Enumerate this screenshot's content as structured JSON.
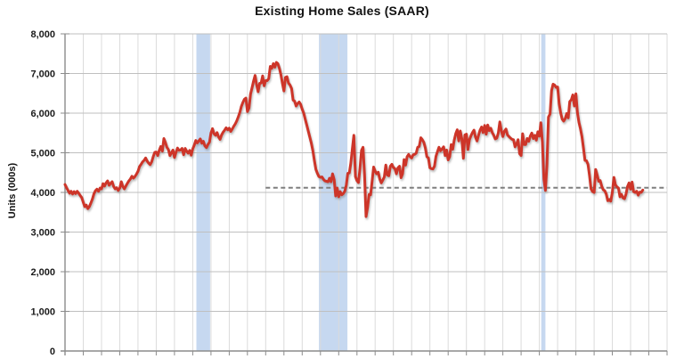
{
  "chart_data": {
    "type": "line",
    "title": "Existing Home Sales (SAAR)",
    "y_axis": {
      "label": "Units (000s)",
      "min": 0,
      "max": 8000,
      "tick_interval": 1000,
      "tick_labels": [
        "0",
        "1,000",
        "2,000",
        "3,000",
        "4,000",
        "5,000",
        "6,000",
        "7,000",
        "8,000"
      ]
    },
    "x_axis": {
      "min": 1994,
      "max": 2027,
      "gridline_interval_years": 1,
      "tick_labels_visible": false
    },
    "grid": true,
    "legend": "none",
    "series": [
      {
        "name": "Existing Home Sales (monthly, SAAR)",
        "color": "#CD3529",
        "unit": "thousands of units",
        "start_year": 1994,
        "points_per_year": 12,
        "values": [
          4200,
          4120,
          4050,
          3980,
          4030,
          3960,
          4020,
          3970,
          4030,
          3980,
          3920,
          3870,
          3750,
          3640,
          3680,
          3590,
          3640,
          3730,
          3830,
          3960,
          4040,
          4080,
          4030,
          4110,
          4090,
          4220,
          4160,
          4240,
          4290,
          4180,
          4230,
          4270,
          4150,
          4090,
          4120,
          4050,
          4110,
          4270,
          4150,
          4090,
          4160,
          4230,
          4290,
          4340,
          4410,
          4360,
          4400,
          4460,
          4530,
          4650,
          4710,
          4770,
          4810,
          4870,
          4790,
          4740,
          4700,
          4770,
          4900,
          5010,
          5020,
          4930,
          5060,
          5160,
          5040,
          5360,
          5260,
          5140,
          5080,
          4930,
          5000,
          5070,
          4880,
          5010,
          5120,
          5060,
          5070,
          5110,
          4950,
          5110,
          5040,
          4990,
          5060,
          4940,
          5100,
          5190,
          5310,
          5250,
          5300,
          5350,
          5240,
          5290,
          5170,
          5130,
          5210,
          5270,
          5500,
          5610,
          5480,
          5440,
          5510,
          5400,
          5340,
          5450,
          5520,
          5570,
          5630,
          5580,
          5620,
          5540,
          5600,
          5670,
          5730,
          5810,
          5910,
          6020,
          6170,
          6270,
          6350,
          6380,
          6040,
          6130,
          6480,
          6640,
          6810,
          6950,
          6720,
          6540,
          6750,
          6760,
          6940,
          6690,
          6820,
          6820,
          6870,
          7180,
          7130,
          7250,
          7160,
          7280,
          7250,
          7130,
          6970,
          6750,
          6560,
          6900,
          6920,
          6760,
          6710,
          6620,
          6330,
          6300,
          6180,
          6240,
          6280,
          6220,
          6100,
          6000,
          5850,
          5700,
          5550,
          5400,
          5250,
          5050,
          4800,
          4580,
          4480,
          4400,
          4380,
          4390,
          4330,
          4290,
          4280,
          4270,
          4360,
          4270,
          4470,
          4320,
          3910,
          4110,
          3890,
          4020,
          3940,
          3970,
          4030,
          4180,
          4480,
          4490,
          4740,
          5100,
          5440,
          4400,
          4300,
          4250,
          4610,
          5060,
          5140,
          4450,
          3390,
          3620,
          3950,
          3940,
          4280,
          4640,
          4540,
          4470,
          4510,
          4340,
          4240,
          4310,
          4390,
          4690,
          4440,
          4420,
          4660,
          4710,
          4630,
          4600,
          4470,
          4620,
          4660,
          4370,
          4470,
          4830,
          4690,
          4900,
          4960,
          4900,
          4870,
          4950,
          4960,
          4990,
          5140,
          5160,
          5380,
          5330,
          5260,
          5120,
          4900,
          4870,
          4620,
          4600,
          4590,
          4660,
          4910,
          5030,
          5140,
          5050,
          5100,
          5150,
          4930,
          5070,
          4820,
          4900,
          5210,
          5090,
          5320,
          5480,
          5580,
          5300,
          5550,
          5360,
          4860,
          5450,
          5470,
          5080,
          5330,
          5430,
          5510,
          5570,
          5390,
          5300,
          5440,
          5570,
          5650,
          5510,
          5690,
          5470,
          5700,
          5560,
          5620,
          5510,
          5440,
          5350,
          5370,
          5500,
          5780,
          5560,
          5410,
          5540,
          5600,
          5450,
          5410,
          5370,
          5340,
          5330,
          5150,
          5220,
          5330,
          4980,
          4930,
          5480,
          5210,
          5210,
          5360,
          5290,
          5420,
          5500,
          5360,
          5440,
          5320,
          5530,
          5420,
          5760,
          5270,
          4330,
          4050,
          4700,
          5900,
          5980,
          6570,
          6730,
          6710,
          6650,
          6660,
          6240,
          6010,
          5850,
          5800,
          5860,
          5990,
          5880,
          6290,
          6340,
          6460,
          6180,
          6490,
          6020,
          5770,
          5610,
          5410,
          5120,
          4810,
          4800,
          4710,
          4430,
          4090,
          4020,
          4000,
          4580,
          4440,
          4280,
          4300,
          4160,
          4070,
          4040,
          3960,
          3790,
          3820,
          3780,
          4000,
          4380,
          4190,
          4140,
          4110,
          3890,
          3950,
          3860,
          3840,
          3960,
          4150,
          4240,
          4080,
          4260,
          4020,
          4000,
          4030,
          3930,
          4010,
          4000,
          4060
        ]
      }
    ],
    "reference_line": {
      "value": 4120,
      "start_year": 2005,
      "style": "dashed",
      "color": "#7F7F7F"
    },
    "recession_bands": {
      "color": "#C6D8F0",
      "intervals": [
        [
          2001.2,
          2001.95
        ],
        [
          2007.92,
          2009.48
        ],
        [
          2020.1,
          2020.33
        ]
      ]
    },
    "styles": {
      "background": "#FFFFFF",
      "grid_vertical": "#DBDBDB",
      "grid_horizontal": "#BFBFBF",
      "axis": "#8C8C8C",
      "text": "#1A1A1A"
    }
  }
}
